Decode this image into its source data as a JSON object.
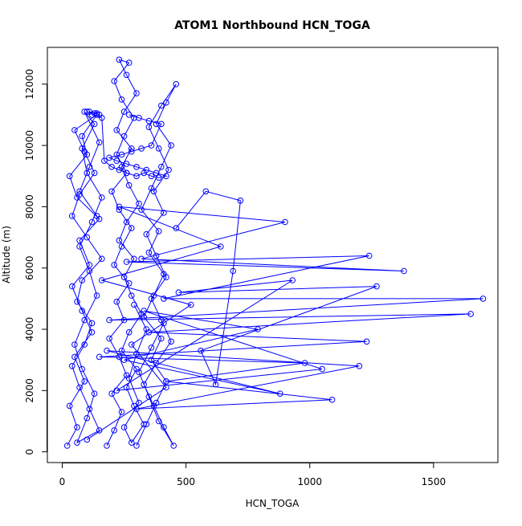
{
  "chart_data": {
    "type": "scatter",
    "title": "ATOM1 Northbound HCN_TOGA",
    "xlabel": "HCN_TOGA",
    "ylabel": "Altitude (m)",
    "xlim": [
      -60,
      1760
    ],
    "ylim": [
      -350,
      13200
    ],
    "x_ticks": [
      0,
      500,
      1000,
      1500
    ],
    "y_ticks": [
      0,
      2000,
      4000,
      6000,
      8000,
      10000,
      12000
    ],
    "x_tick_labels": [
      "0",
      "500",
      "1000",
      "1500"
    ],
    "y_tick_labels": [
      "0",
      "2000",
      "4000",
      "6000",
      "8000",
      "10000",
      "12000"
    ],
    "grid": false,
    "legend": "none",
    "point_style": "open-circle-connected",
    "color": "#0000ff",
    "series": [
      {
        "x": [
          20,
          60,
          30,
          90,
          50,
          120,
          80,
          40,
          110,
          70,
          150,
          60,
          30,
          100,
          80,
          140,
          50,
          90,
          130,
          70,
          40,
          100,
          160,
          80,
          60,
          120,
          90,
          40,
          70,
          110,
          150,
          60,
          100,
          130,
          80,
          50,
          90,
          140,
          110,
          70,
          120,
          160,
          100,
          80,
          130,
          90,
          150,
          110,
          70,
          140
        ],
        "y": [
          200,
          800,
          1500,
          2300,
          3100,
          3900,
          4600,
          5400,
          6100,
          6900,
          7600,
          8300,
          9000,
          9700,
          10300,
          11000,
          10500,
          9800,
          9100,
          8400,
          7700,
          7000,
          6300,
          5600,
          4900,
          4200,
          3500,
          2800,
          2100,
          1400,
          700,
          300,
          1100,
          1900,
          2700,
          3500,
          4300,
          5100,
          5900,
          6700,
          7500,
          8300,
          9100,
          9900,
          10700,
          11100,
          10100,
          9300,
          8500,
          7700
        ]
      },
      {
        "x": [
          180,
          210,
          240,
          200,
          260,
          230,
          190,
          250,
          220,
          270,
          210,
          240,
          280,
          230,
          200,
          260,
          220,
          250,
          290,
          240,
          210,
          270,
          230,
          260,
          300,
          250,
          220,
          280,
          240,
          270,
          310,
          260,
          230,
          290,
          250,
          280,
          320,
          270,
          240,
          300,
          260,
          290,
          330,
          280,
          250,
          310,
          270,
          300,
          340,
          290
        ],
        "y": [
          200,
          700,
          1300,
          1900,
          2500,
          3100,
          3700,
          4300,
          4900,
          5500,
          6100,
          6700,
          7300,
          7900,
          8500,
          9100,
          9700,
          10300,
          10900,
          11500,
          12100,
          12700,
          12800,
          12300,
          11700,
          11100,
          10500,
          9900,
          9300,
          8700,
          8100,
          7500,
          6900,
          6300,
          5700,
          5100,
          4500,
          3900,
          3300,
          2700,
          2100,
          1500,
          900,
          300,
          800,
          1600,
          2400,
          3200,
          4000,
          4800
        ]
      },
      {
        "x": [
          300,
          340,
          380,
          420,
          360,
          400,
          330,
          370,
          410,
          350,
          390,
          320,
          360,
          400,
          440,
          380,
          420,
          460,
          400,
          350,
          390,
          430,
          370,
          410,
          340,
          380,
          420,
          360,
          400,
          440,
          380,
          330,
          370,
          410,
          450,
          390,
          350,
          310,
          360,
          410
        ],
        "y": [
          200,
          900,
          1600,
          2300,
          3000,
          3700,
          4400,
          5100,
          5800,
          6500,
          7200,
          7900,
          8600,
          9300,
          10000,
          10700,
          11400,
          12000,
          11300,
          10600,
          9900,
          9200,
          8500,
          7800,
          7100,
          6400,
          5700,
          5000,
          4300,
          3600,
          2900,
          2200,
          1500,
          800,
          200,
          1000,
          1800,
          2600,
          3400,
          4200
        ]
      },
      {
        "x": [
          100,
          420,
          280,
          520,
          160,
          640,
          230,
          900,
          320,
          1380,
          260,
          1240,
          410,
          1700,
          190,
          1650,
          350,
          1230,
          150,
          980,
          420,
          1090,
          300,
          1200,
          180,
          880,
          250,
          790,
          330,
          1050,
          220,
          930,
          470,
          1270,
          560,
          620,
          690,
          720,
          580,
          460
        ],
        "y": [
          400,
          2100,
          3500,
          4800,
          5600,
          6700,
          8000,
          7500,
          6300,
          5900,
          6200,
          6400,
          5000,
          5000,
          4300,
          4500,
          3900,
          3600,
          3100,
          2900,
          2300,
          1700,
          1400,
          2800,
          3300,
          1900,
          3000,
          4000,
          4600,
          2700,
          2000,
          5600,
          5200,
          5400,
          3300,
          2200,
          5900,
          8200,
          8500,
          7300
        ]
      },
      {
        "x": [
          120,
          140,
          110,
          150,
          130,
          100,
          160,
          170,
          200,
          230,
          260,
          300,
          330,
          360,
          390,
          420,
          380,
          340,
          300,
          260,
          220,
          190,
          240,
          280,
          320,
          360,
          400,
          350,
          310,
          270
        ],
        "y": [
          11000,
          11050,
          11100,
          11000,
          11050,
          11100,
          10900,
          9500,
          9300,
          9200,
          9100,
          9000,
          9100,
          9000,
          8950,
          9000,
          9100,
          9200,
          9300,
          9400,
          9500,
          9600,
          9700,
          9800,
          9900,
          10000,
          10700,
          10800,
          10900,
          11000
        ]
      }
    ]
  }
}
